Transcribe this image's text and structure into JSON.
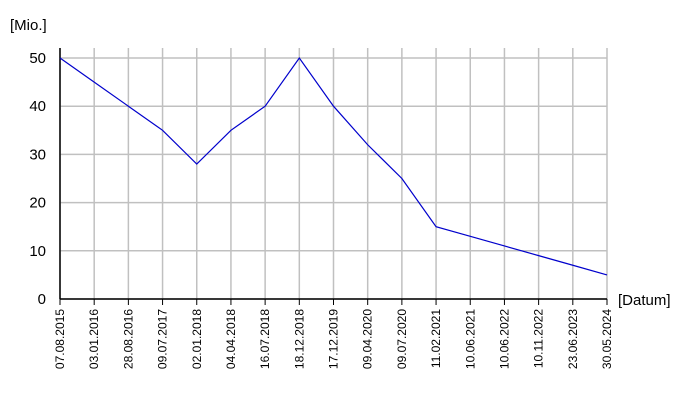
{
  "chart_data": {
    "type": "line",
    "y_label": "[Mio.]",
    "x_label": "[Datum]",
    "categories": [
      "07.08.2015",
      "03.01.2016",
      "28.08.2016",
      "09.07.2017",
      "02.01.2018",
      "04.04.2018",
      "16.07.2018",
      "18.12.2018",
      "17.12.2019",
      "09.04.2020",
      "09.07.2020",
      "11.02.2021",
      "10.06.2021",
      "10.06.2022",
      "10.11.2022",
      "23.06.2023",
      "30.05.2024"
    ],
    "series": [
      {
        "name": "Mio.",
        "color": "#0000cc",
        "values": [
          50,
          45,
          40,
          35,
          28,
          35,
          40,
          50,
          40,
          32,
          25,
          15,
          13,
          11,
          9,
          7,
          5
        ]
      }
    ],
    "ylim": [
      0,
      50
    ],
    "yticks": [
      0,
      10,
      20,
      30,
      40,
      50
    ],
    "grid": true
  }
}
